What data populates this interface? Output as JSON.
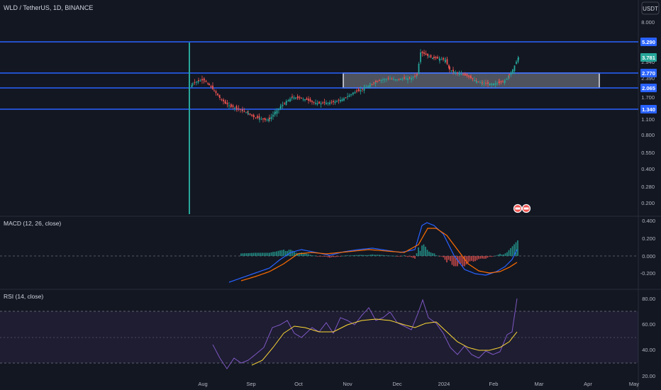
{
  "header": {
    "symbol_title": "WLD / TetherUS, 1D, BINANCE",
    "currency_button": "USDT"
  },
  "price_axis": {
    "ticks": [
      "8.000",
      "2.940",
      "2.390",
      "1.700",
      "1.100",
      "0.800",
      "0.550",
      "0.400",
      "0.280",
      "0.200"
    ],
    "labels": [
      {
        "text": "5.290",
        "kind": "level"
      },
      {
        "text": "3.781",
        "kind": "last"
      },
      {
        "text": "2.770",
        "kind": "level"
      },
      {
        "text": "2.065",
        "kind": "level"
      },
      {
        "text": "1.340",
        "kind": "level"
      }
    ]
  },
  "macd": {
    "title": "MACD (12, 26, close)",
    "ticks": [
      "0.400",
      "0.200",
      "0.000",
      "-0.200"
    ]
  },
  "rsi": {
    "title": "RSI (14, close)",
    "ticks": [
      "80.00",
      "60.00",
      "40.00",
      "20.00"
    ]
  },
  "time_axis": {
    "labels": [
      "Aug",
      "Sep",
      "Oct",
      "Nov",
      "Dec",
      "2024",
      "Feb",
      "Mar",
      "Apr",
      "May"
    ]
  },
  "colors": {
    "background": "#131722",
    "up": "#26a69a",
    "down": "#ef5350",
    "level_line": "#2962ff",
    "macd_line": "#2962ff",
    "signal_line": "#ff6d00",
    "rsi_line": "#7e57c2",
    "rsi_ma": "#fdd835",
    "rsi_band": "#2a2340"
  },
  "icons": {
    "events": "flag-icons"
  }
}
